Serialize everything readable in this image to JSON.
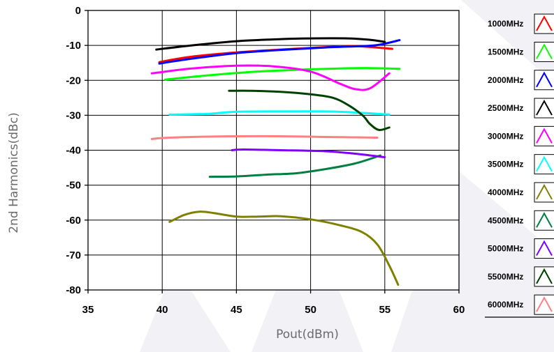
{
  "chart_data": {
    "type": "line",
    "title": "",
    "xlabel": "Pout(dBm)",
    "ylabel": "2nd Harmonics(dBc)",
    "xlim": [
      35,
      60
    ],
    "ylim": [
      -80,
      0
    ],
    "xticks": [
      "35",
      "40",
      "45",
      "50",
      "55",
      "60"
    ],
    "yticks": [
      "0",
      "-10",
      "-20",
      "-30",
      "-40",
      "-50",
      "-60",
      "-70",
      "-80"
    ],
    "grid": true,
    "legend_position": "right",
    "series": [
      {
        "name": "1000MHz",
        "color": "#ff0000",
        "points": [
          [
            39.8,
            -14.8
          ],
          [
            42,
            -13.2
          ],
          [
            45,
            -12.0
          ],
          [
            48,
            -11.2
          ],
          [
            51,
            -10.5
          ],
          [
            53,
            -10.2
          ],
          [
            55.5,
            -11.0
          ]
        ]
      },
      {
        "name": "1500MHz",
        "color": "#00ff00",
        "points": [
          [
            40.2,
            -19.8
          ],
          [
            43,
            -18.6
          ],
          [
            46,
            -17.6
          ],
          [
            49,
            -17.0
          ],
          [
            52,
            -16.6
          ],
          [
            54,
            -16.5
          ],
          [
            56,
            -16.7
          ]
        ]
      },
      {
        "name": "2000MHz",
        "color": "#0000ff",
        "points": [
          [
            39.8,
            -15.2
          ],
          [
            42,
            -13.8
          ],
          [
            45,
            -12.2
          ],
          [
            48,
            -11.3
          ],
          [
            51,
            -10.6
          ],
          [
            54,
            -10.1
          ],
          [
            55,
            -9.5
          ],
          [
            56,
            -8.5
          ]
        ]
      },
      {
        "name": "2500MHz",
        "color": "#000000",
        "points": [
          [
            39.6,
            -11.2
          ],
          [
            42,
            -10.0
          ],
          [
            45,
            -8.8
          ],
          [
            48,
            -8.2
          ],
          [
            50,
            -8.0
          ],
          [
            52.5,
            -8.0
          ],
          [
            54,
            -8.4
          ],
          [
            55,
            -9.0
          ]
        ]
      },
      {
        "name": "3000MHz",
        "color": "#ff00ff",
        "points": [
          [
            39.3,
            -18.0
          ],
          [
            42,
            -16.6
          ],
          [
            45,
            -15.8
          ],
          [
            47.5,
            -16.0
          ],
          [
            50,
            -17.5
          ],
          [
            52,
            -21.0
          ],
          [
            53,
            -22.5
          ],
          [
            54,
            -22.3
          ],
          [
            55.3,
            -18.0
          ]
        ]
      },
      {
        "name": "3500MHz",
        "color": "#00ffff",
        "points": [
          [
            40.5,
            -29.8
          ],
          [
            43,
            -29.6
          ],
          [
            45,
            -29.0
          ],
          [
            48,
            -28.9
          ],
          [
            51,
            -28.9
          ],
          [
            53,
            -29.2
          ],
          [
            55.3,
            -29.8
          ]
        ]
      },
      {
        "name": "4000MHz",
        "color": "#808000",
        "points": [
          [
            40.5,
            -60.5
          ],
          [
            41.5,
            -58.5
          ],
          [
            42.5,
            -57.6
          ],
          [
            43.5,
            -58.0
          ],
          [
            45,
            -59.0
          ],
          [
            46.5,
            -59.0
          ],
          [
            48,
            -58.9
          ],
          [
            50,
            -59.8
          ],
          [
            52,
            -61.5
          ],
          [
            53.5,
            -63.5
          ],
          [
            54.5,
            -67.0
          ],
          [
            55.3,
            -73.0
          ],
          [
            55.9,
            -78.5
          ]
        ]
      },
      {
        "name": "4500MHz",
        "color": "#008040",
        "points": [
          [
            43.2,
            -47.6
          ],
          [
            45,
            -47.5
          ],
          [
            47,
            -47.0
          ],
          [
            49,
            -46.6
          ],
          [
            51,
            -45.4
          ],
          [
            53,
            -43.8
          ],
          [
            54.7,
            -41.5
          ]
        ]
      },
      {
        "name": "5000MHz",
        "color": "#8000ff",
        "points": [
          [
            44.7,
            -40.0
          ],
          [
            45.5,
            -39.8
          ],
          [
            48,
            -40.0
          ],
          [
            51,
            -40.3
          ],
          [
            53,
            -41.0
          ],
          [
            55,
            -42.0
          ]
        ]
      },
      {
        "name": "5500MHz",
        "color": "#004000",
        "points": [
          [
            44.5,
            -23.0
          ],
          [
            46,
            -23.0
          ],
          [
            48,
            -23.3
          ],
          [
            50,
            -24.0
          ],
          [
            51.5,
            -25.0
          ],
          [
            52.5,
            -27.0
          ],
          [
            53.5,
            -30.0
          ],
          [
            54,
            -32.5
          ],
          [
            54.6,
            -34.2
          ],
          [
            55.3,
            -33.5
          ]
        ]
      },
      {
        "name": "6000MHz",
        "color": "#ff8080",
        "points": [
          [
            39.3,
            -36.8
          ],
          [
            40,
            -36.5
          ],
          [
            42,
            -36.2
          ],
          [
            45,
            -36.0
          ],
          [
            48,
            -36.0
          ],
          [
            51,
            -36.2
          ],
          [
            54.5,
            -36.4
          ]
        ]
      }
    ]
  }
}
